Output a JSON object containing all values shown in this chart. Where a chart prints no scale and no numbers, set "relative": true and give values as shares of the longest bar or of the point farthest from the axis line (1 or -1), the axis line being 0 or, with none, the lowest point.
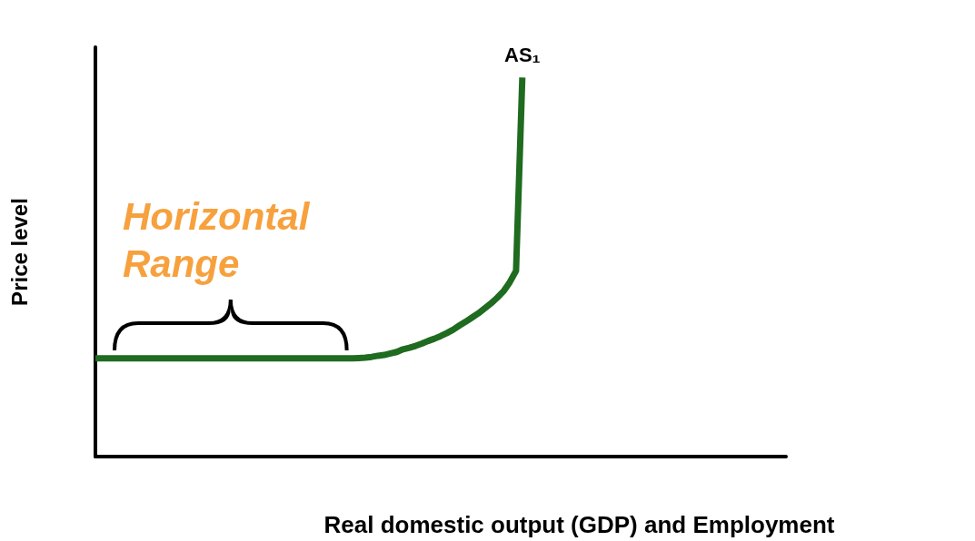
{
  "chart_data": {
    "type": "line",
    "relative": true,
    "xlabel": "Real domestic output (GDP) and Employment",
    "ylabel": "Price level",
    "categories": [
      null,
      null,
      null,
      null,
      null,
      null,
      null,
      null,
      null,
      null,
      null,
      null,
      null,
      null,
      null,
      null,
      null,
      null,
      null,
      null,
      null,
      null,
      null,
      null,
      null,
      null,
      null,
      null,
      null,
      null,
      null,
      null,
      null,
      null,
      null,
      null,
      null,
      null,
      null,
      null,
      null,
      null,
      null,
      null,
      null,
      null,
      null,
      null,
      null,
      null,
      null,
      null,
      null,
      null,
      null,
      null,
      null,
      null,
      null,
      null,
      null,
      null,
      null,
      null,
      null,
      null,
      null,
      null,
      null,
      null,
      null,
      null,
      null,
      null,
      null,
      null,
      null,
      null,
      null,
      null,
      null,
      null,
      null,
      null,
      null,
      null,
      null,
      null,
      null,
      null,
      null,
      null,
      null,
      null,
      null,
      null,
      null,
      null,
      null,
      null,
      null,
      null,
      null,
      null,
      null,
      null,
      null,
      null,
      null,
      null,
      null
    ],
    "series": [
      {
        "name": "AS₁",
        "color": "#1f6b1f",
        "values": [
          0.259,
          0.259,
          0.259,
          0.259,
          0.259,
          0.259,
          0.259,
          0.259,
          0.259,
          0.259,
          0.259,
          0.259,
          0.259,
          0.259,
          0.259,
          0.259,
          0.259,
          0.259,
          0.259,
          0.259,
          0.259,
          0.259,
          0.259,
          0.259,
          0.259,
          0.259,
          0.259,
          0.259,
          0.259,
          0.259,
          0.259,
          0.259,
          0.259,
          0.259,
          0.259,
          0.259,
          0.259,
          0.259,
          0.259,
          0.259,
          0.259,
          0.259,
          0.26,
          0.261,
          0.263,
          0.266,
          0.268,
          0.272,
          0.276,
          0.283,
          0.287,
          0.292,
          0.298,
          0.305,
          0.311,
          0.318,
          0.326,
          0.335,
          0.346,
          0.356,
          0.367,
          0.378,
          0.391,
          0.404,
          0.419,
          0.436,
          0.46,
          0.49,
          1,
          null,
          null,
          null,
          null,
          null,
          null,
          null,
          null,
          null,
          null,
          null,
          null,
          null,
          null,
          null,
          null,
          null,
          null,
          null,
          null,
          null,
          null,
          null,
          null,
          null,
          null,
          null,
          null,
          null,
          null,
          null,
          null,
          null,
          null,
          null,
          null,
          null,
          null,
          null,
          null,
          null,
          null
        ]
      }
    ],
    "annotations": [
      "Horizontal Range"
    ],
    "grid": false,
    "legend": false,
    "marker": "none",
    "line_style": "solid"
  }
}
